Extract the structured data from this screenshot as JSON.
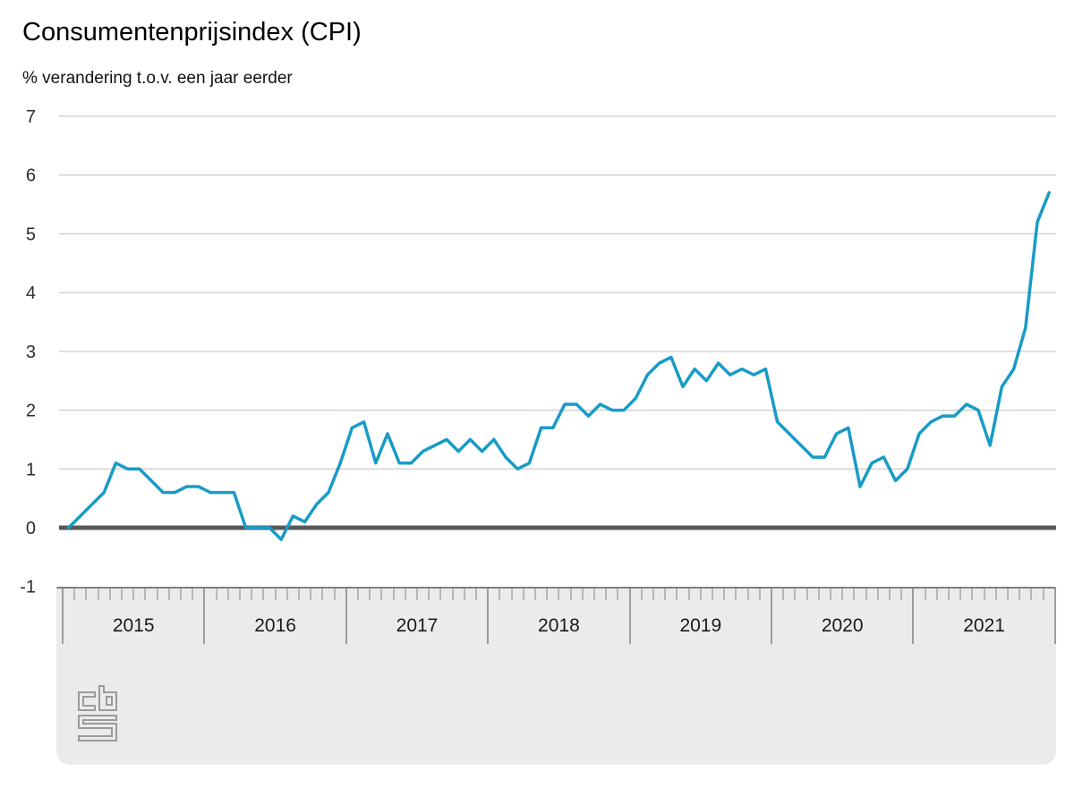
{
  "header": {
    "title": "Consumentenprijsindex (CPI)",
    "subtitle": "% verandering t.o.v. een jaar eerder"
  },
  "chart_data": {
    "type": "line",
    "title": "Consumentenprijsindex (CPI)",
    "subtitle": "% verandering t.o.v. een jaar eerder",
    "x_start": "2015-01",
    "x_end": "2021-12",
    "x_interval": "monthly",
    "x_tick_years": [
      "2015",
      "2016",
      "2017",
      "2018",
      "2019",
      "2020",
      "2021"
    ],
    "y_ticks": [
      7,
      6,
      5,
      4,
      3,
      2,
      1,
      0,
      -1
    ],
    "ylim": [
      -1,
      7
    ],
    "grid": true,
    "legend_position": "none",
    "series": [
      {
        "name": "CPI, % verandering t.o.v. een jaar eerder",
        "values": [
          0.0,
          0.2,
          0.4,
          0.6,
          1.1,
          1.0,
          1.0,
          0.8,
          0.6,
          0.6,
          0.7,
          0.7,
          0.6,
          0.6,
          0.6,
          0.0,
          0.0,
          0.0,
          -0.2,
          0.2,
          0.1,
          0.4,
          0.6,
          1.1,
          1.7,
          1.8,
          1.1,
          1.6,
          1.1,
          1.1,
          1.3,
          1.4,
          1.5,
          1.3,
          1.5,
          1.3,
          1.5,
          1.2,
          1.0,
          1.1,
          1.7,
          1.7,
          2.1,
          2.1,
          1.9,
          2.1,
          2.0,
          2.0,
          2.2,
          2.6,
          2.8,
          2.9,
          2.4,
          2.7,
          2.5,
          2.8,
          2.6,
          2.7,
          2.6,
          2.7,
          1.8,
          1.6,
          1.4,
          1.2,
          1.2,
          1.6,
          1.7,
          0.7,
          1.1,
          1.2,
          0.8,
          1.0,
          1.6,
          1.8,
          1.9,
          1.9,
          2.1,
          2.0,
          1.4,
          2.4,
          2.7,
          3.4,
          5.2,
          5.7
        ]
      }
    ],
    "colors": {
      "line": "#189bc7",
      "zero_line": "#58585a",
      "gridline": "#cccccc",
      "axis_band": "#ebebeb"
    }
  },
  "footer": {
    "logo": "cbs-logo"
  }
}
